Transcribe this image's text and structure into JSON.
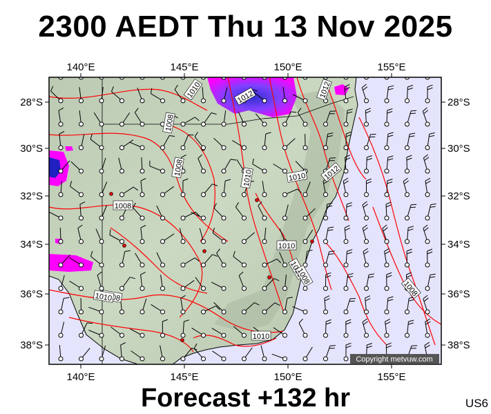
{
  "title": "2300 AEDT Thu 13 Nov 2025",
  "footer": "Forecast +132 hr",
  "model_code": "US6",
  "copyright": "Copyright metvuw.com",
  "axes": {
    "lon_labels": [
      "140°E",
      "145°E",
      "150°E",
      "155°E"
    ],
    "lat_labels": [
      "28°S",
      "30°S",
      "32°S",
      "34°S",
      "36°S",
      "38°S"
    ]
  },
  "isobar_labels": [
    "1010",
    "1008",
    "1012",
    "1008",
    "1008",
    "1010",
    "1008",
    "1012",
    "1010",
    "1010",
    "1012",
    "1008",
    "1010",
    "1010",
    "1008",
    "1010"
  ],
  "colors": {
    "ocean": "#e4e4fc",
    "land": "#c8d6c0",
    "isobar": "#ff0000",
    "rain_light": "#ff00ff",
    "rain_heavy": "#2020c0",
    "frame": "#000000"
  }
}
